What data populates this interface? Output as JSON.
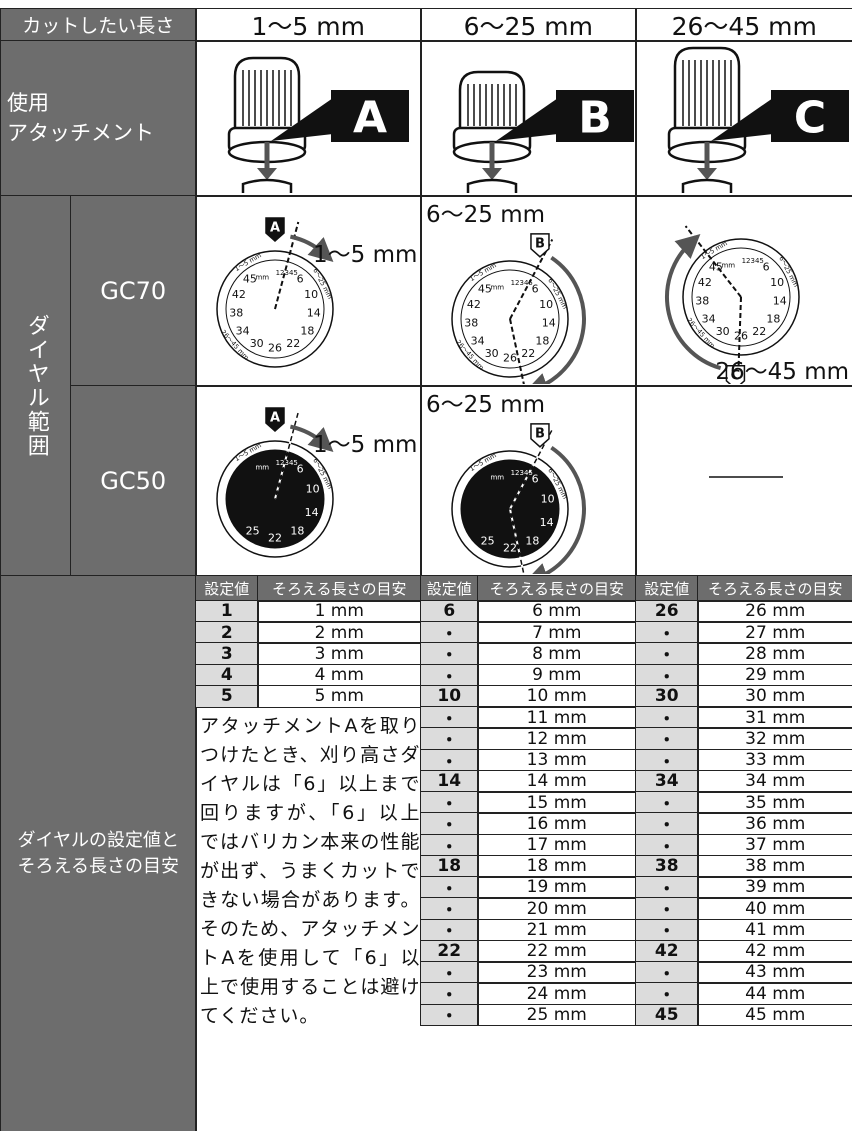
{
  "header": {
    "label": "カットしたい長さ",
    "ranges": [
      "1～5 mm",
      "6～25 mm",
      "26～45 mm"
    ]
  },
  "attachment": {
    "label_lines": [
      "使用",
      "アタッチメント"
    ],
    "letters": [
      "A",
      "B",
      "C"
    ]
  },
  "dial_range": {
    "label": "ダイヤル範囲",
    "models": [
      {
        "name": "GC70",
        "scale": [
          "45",
          "42",
          "38",
          "34",
          "30",
          "26",
          "22",
          "18",
          "14",
          "10",
          "6"
        ],
        "ranges": [
          "1～5 mm",
          "6～25 mm",
          "26～45 mm"
        ]
      },
      {
        "name": "GC50",
        "scale": [
          "25",
          "22",
          "18",
          "14",
          "10",
          "6"
        ],
        "ranges": [
          "1～5 mm",
          "6～25 mm"
        ]
      }
    ]
  },
  "dial_marks": {
    "ring": [
      "1～5 mm",
      "6～25 mm",
      "26～45 mm"
    ],
    "fine": "12345",
    "unit": "mm"
  },
  "settings": {
    "label_lines": [
      "ダイヤルの設定値と",
      "そろえる長さの目安"
    ],
    "groups": [
      {
        "header": [
          "設定値",
          "そろえる長さの目安"
        ],
        "rows": [
          [
            "1",
            "1 mm"
          ],
          [
            "2",
            "2 mm"
          ],
          [
            "3",
            "3 mm"
          ],
          [
            "4",
            "4 mm"
          ],
          [
            "5",
            "5 mm"
          ]
        ]
      },
      {
        "header": [
          "設定値",
          "そろえる長さの目安"
        ],
        "rows": [
          [
            "6",
            "6 mm"
          ],
          [
            "・",
            "7 mm"
          ],
          [
            "・",
            "8 mm"
          ],
          [
            "・",
            "9 mm"
          ],
          [
            "10",
            "10 mm"
          ],
          [
            "・",
            "11 mm"
          ],
          [
            "・",
            "12 mm"
          ],
          [
            "・",
            "13 mm"
          ],
          [
            "14",
            "14 mm"
          ],
          [
            "・",
            "15 mm"
          ],
          [
            "・",
            "16 mm"
          ],
          [
            "・",
            "17 mm"
          ],
          [
            "18",
            "18 mm"
          ],
          [
            "・",
            "19 mm"
          ],
          [
            "・",
            "20 mm"
          ],
          [
            "・",
            "21 mm"
          ],
          [
            "22",
            "22 mm"
          ],
          [
            "・",
            "23 mm"
          ],
          [
            "・",
            "24 mm"
          ],
          [
            "・",
            "25 mm"
          ]
        ]
      },
      {
        "header": [
          "設定値",
          "そろえる長さの目安"
        ],
        "rows": [
          [
            "26",
            "26 mm"
          ],
          [
            "・",
            "27 mm"
          ],
          [
            "・",
            "28 mm"
          ],
          [
            "・",
            "29 mm"
          ],
          [
            "30",
            "30 mm"
          ],
          [
            "・",
            "31 mm"
          ],
          [
            "・",
            "32 mm"
          ],
          [
            "・",
            "33 mm"
          ],
          [
            "34",
            "34 mm"
          ],
          [
            "・",
            "35 mm"
          ],
          [
            "・",
            "36 mm"
          ],
          [
            "・",
            "37 mm"
          ],
          [
            "38",
            "38 mm"
          ],
          [
            "・",
            "39 mm"
          ],
          [
            "・",
            "40 mm"
          ],
          [
            "・",
            "41 mm"
          ],
          [
            "42",
            "42 mm"
          ],
          [
            "・",
            "43 mm"
          ],
          [
            "・",
            "44 mm"
          ],
          [
            "45",
            "45 mm"
          ]
        ]
      }
    ],
    "note": "アタッチメントAを取りつけたとき、刈り高さダイヤルは「6」以上まで回りますが、「6」以上ではバリカン本来の性能が出ず、うまくカットできない場合があります。そのため、アタッチメントAを使用して「6」以上で使用することは避けてください。"
  }
}
